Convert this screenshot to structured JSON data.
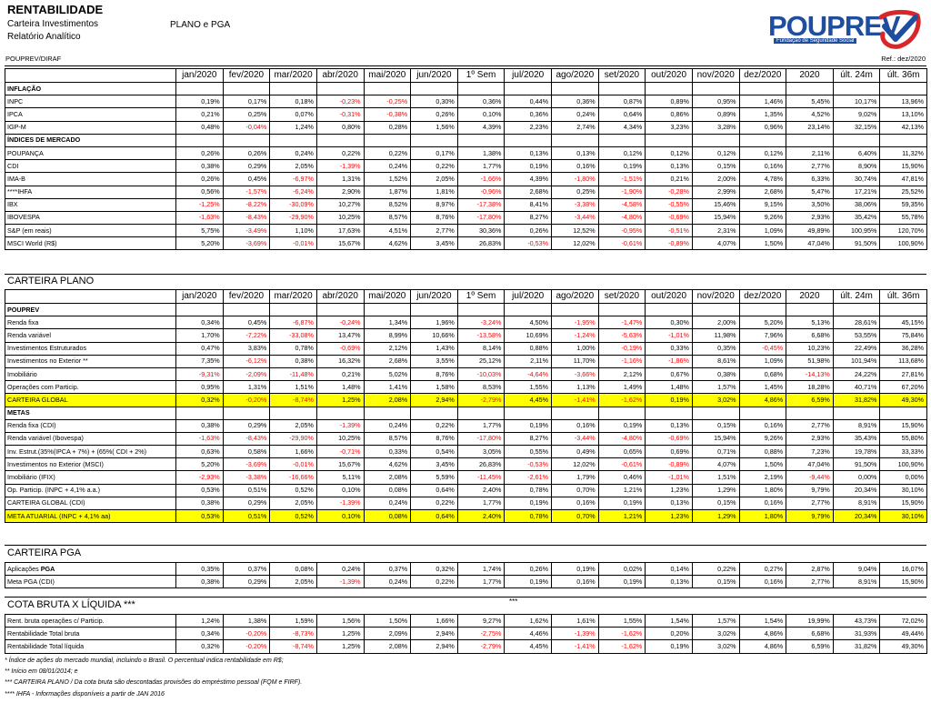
{
  "header": {
    "title": "RENTABILIDADE",
    "subtitle1": "Carteira Investimentos",
    "subtitle2": "Relatório Analítico",
    "plan": "PLANO e PGA",
    "logo_text": "POUPREV",
    "logo_sub": "Fundação de Seguridade Social",
    "org": "POUPREV/DIRAF",
    "ref": "Ref.: dez/2020"
  },
  "columns": [
    "jan/2020",
    "fev/2020",
    "mar/2020",
    "abr/2020",
    "mai/2020",
    "jun/2020",
    "1º Sem",
    "jul/2020",
    "ago/2020",
    "set/2020",
    "out/2020",
    "nov/2020",
    "dez/2020",
    "2020",
    "últ. 24m",
    "últ. 36m"
  ],
  "table1": [
    {
      "label": "INFLAÇÃO",
      "section": true
    },
    {
      "label": "INPC",
      "values": [
        "0,19%",
        "0,17%",
        "0,18%",
        "-0,23%",
        "-0,25%",
        "0,30%",
        "0,36%",
        "0,44%",
        "0,36%",
        "0,87%",
        "0,89%",
        "0,95%",
        "1,46%",
        "5,45%",
        "10,17%",
        "13,96%"
      ]
    },
    {
      "label": "IPCA",
      "values": [
        "0,21%",
        "0,25%",
        "0,07%",
        "-0,31%",
        "-0,38%",
        "0,26%",
        "0,10%",
        "0,36%",
        "0,24%",
        "0,64%",
        "0,86%",
        "0,89%",
        "1,35%",
        "4,52%",
        "9,02%",
        "13,10%"
      ]
    },
    {
      "label": "IGP-M",
      "values": [
        "0,48%",
        "-0,04%",
        "1,24%",
        "0,80%",
        "0,28%",
        "1,56%",
        "4,39%",
        "2,23%",
        "2,74%",
        "4,34%",
        "3,23%",
        "3,28%",
        "0,96%",
        "23,14%",
        "32,15%",
        "42,13%"
      ]
    },
    {
      "label": "ÍNDICES DE MERCADO",
      "section": true
    },
    {
      "label": "POUPANÇA",
      "values": [
        "0,26%",
        "0,26%",
        "0,24%",
        "0,22%",
        "0,22%",
        "0,17%",
        "1,38%",
        "0,13%",
        "0,13%",
        "0,12%",
        "0,12%",
        "0,12%",
        "0,12%",
        "2,11%",
        "6,40%",
        "11,32%"
      ]
    },
    {
      "label": "CDI",
      "values": [
        "0,38%",
        "0,29%",
        "2,05%",
        "-1,39%",
        "0,24%",
        "0,22%",
        "1,77%",
        "0,19%",
        "0,16%",
        "0,19%",
        "0,13%",
        "0,15%",
        "0,16%",
        "2,77%",
        "8,90%",
        "15,90%"
      ]
    },
    {
      "label": "IMA-B",
      "values": [
        "0,26%",
        "0,45%",
        "-6,97%",
        "1,31%",
        "1,52%",
        "2,05%",
        "-1,66%",
        "4,39%",
        "-1,80%",
        "-1,51%",
        "0,21%",
        "2,00%",
        "4,78%",
        "6,33%",
        "30,74%",
        "47,81%"
      ]
    },
    {
      "label": "****IHFA",
      "values": [
        "0,56%",
        "-1,57%",
        "-6,24%",
        "2,90%",
        "1,87%",
        "1,81%",
        "-0,96%",
        "2,68%",
        "0,25%",
        "-1,90%",
        "-0,28%",
        "2,99%",
        "2,68%",
        "5,47%",
        "17,21%",
        "25,52%"
      ]
    },
    {
      "label": "IBX",
      "values": [
        "-1,25%",
        "-8,22%",
        "-30,09%",
        "10,27%",
        "8,52%",
        "8,97%",
        "-17,38%",
        "8,41%",
        "-3,38%",
        "-4,58%",
        "-0,55%",
        "15,46%",
        "9,15%",
        "3,50%",
        "38,06%",
        "59,35%"
      ]
    },
    {
      "label": "IBOVESPA",
      "values": [
        "-1,63%",
        "-8,43%",
        "-29,90%",
        "10,25%",
        "8,57%",
        "8,76%",
        "-17,80%",
        "8,27%",
        "-3,44%",
        "-4,80%",
        "-0,69%",
        "15,94%",
        "9,26%",
        "2,93%",
        "35,42%",
        "55,78%"
      ]
    },
    {
      "label": "S&P (em reais)",
      "values": [
        "5,75%",
        "-3,49%",
        "1,10%",
        "17,63%",
        "4,51%",
        "2,77%",
        "30,36%",
        "0,26%",
        "12,52%",
        "-0,95%",
        "-0,51%",
        "2,31%",
        "1,09%",
        "49,89%",
        "100,95%",
        "120,70%"
      ]
    },
    {
      "label": "MSCI World (R$)",
      "values": [
        "5,20%",
        "-3,69%",
        "-0,01%",
        "15,67%",
        "4,62%",
        "3,45%",
        "26,83%",
        "-0,53%",
        "12,02%",
        "-0,61%",
        "-0,89%",
        "4,07%",
        "1,50%",
        "47,04%",
        "91,50%",
        "100,90%"
      ]
    }
  ],
  "section2_title": "CARTEIRA PLANO",
  "table2": [
    {
      "label": "POUPREV",
      "section": true
    },
    {
      "label": "Renda fixa",
      "values": [
        "0,34%",
        "0,45%",
        "-6,87%",
        "-0,24%",
        "1,34%",
        "1,96%",
        "-3,24%",
        "4,50%",
        "-1,95%",
        "-1,47%",
        "0,30%",
        "2,00%",
        "5,20%",
        "5,13%",
        "28,61%",
        "45,15%"
      ]
    },
    {
      "label": "Renda variável",
      "values": [
        "1,70%",
        "-7,22%",
        "-33,08%",
        "13,47%",
        "8,99%",
        "10,66%",
        "-13,58%",
        "10,69%",
        "-1,24%",
        "-5,63%",
        "-1,01%",
        "11,98%",
        "7,96%",
        "6,68%",
        "53,55%",
        "75,84%"
      ]
    },
    {
      "label": "Investimentos Estruturados",
      "values": [
        "0,47%",
        "3,83%",
        "0,78%",
        "-0,69%",
        "2,12%",
        "1,43%",
        "8,14%",
        "0,88%",
        "1,00%",
        "-0,19%",
        "0,33%",
        "0,35%",
        "-0,45%",
        "10,23%",
        "22,49%",
        "36,28%"
      ]
    },
    {
      "label": "Investimentos no Exterior **",
      "values": [
        "7,35%",
        "-6,12%",
        "0,38%",
        "16,32%",
        "2,68%",
        "3,55%",
        "25,12%",
        "2,11%",
        "11,70%",
        "-1,16%",
        "-1,86%",
        "8,61%",
        "1,09%",
        "51,98%",
        "101,94%",
        "113,68%"
      ]
    },
    {
      "label": "Imobiliário",
      "values": [
        "-9,31%",
        "-2,09%",
        "-11,48%",
        "0,21%",
        "5,02%",
        "8,76%",
        "-10,03%",
        "-4,64%",
        "-3,66%",
        "2,12%",
        "0,67%",
        "0,38%",
        "0,68%",
        "-14,13%",
        "24,22%",
        "27,81%"
      ]
    },
    {
      "label": "Operações com Particip.",
      "values": [
        "0,95%",
        "1,31%",
        "1,51%",
        "1,48%",
        "1,41%",
        "1,58%",
        "8,53%",
        "1,55%",
        "1,13%",
        "1,49%",
        "1,48%",
        "1,57%",
        "1,45%",
        "18,28%",
        "40,71%",
        "67,20%"
      ]
    },
    {
      "label": "CARTEIRA GLOBAL",
      "highlight": true,
      "values": [
        "0,32%",
        "-0,20%",
        "-8,74%",
        "1,25%",
        "2,08%",
        "2,94%",
        "-2,79%",
        "4,45%",
        "-1,41%",
        "-1,62%",
        "0,19%",
        "3,02%",
        "4,86%",
        "6,59%",
        "31,82%",
        "49,30%"
      ]
    },
    {
      "label": "METAS",
      "section": true
    },
    {
      "label": "Renda fixa (CDI)",
      "values": [
        "0,38%",
        "0,29%",
        "2,05%",
        "-1,39%",
        "0,24%",
        "0,22%",
        "1,77%",
        "0,19%",
        "0,16%",
        "0,19%",
        "0,13%",
        "0,15%",
        "0,16%",
        "2,77%",
        "8,91%",
        "15,90%"
      ]
    },
    {
      "label": "Renda variável (Ibovespa)",
      "values": [
        "-1,63%",
        "-8,43%",
        "-29,90%",
        "10,25%",
        "8,57%",
        "8,76%",
        "-17,80%",
        "8,27%",
        "-3,44%",
        "-4,80%",
        "-0,69%",
        "15,94%",
        "9,26%",
        "2,93%",
        "35,43%",
        "55,80%"
      ]
    },
    {
      "label": "Inv. Estrut.(35%(IPCA + 7%) + (65%( CDI + 2%)",
      "values": [
        "0,63%",
        "0,58%",
        "1,66%",
        "-0,71%",
        "0,33%",
        "0,54%",
        "3,05%",
        "0,55%",
        "0,49%",
        "0,65%",
        "0,69%",
        "0,71%",
        "0,88%",
        "7,23%",
        "19,78%",
        "33,33%"
      ]
    },
    {
      "label": "Investimentos no Exterior (MSCI)",
      "values": [
        "5,20%",
        "-3,69%",
        "-0,01%",
        "15,67%",
        "4,62%",
        "3,45%",
        "26,83%",
        "-0,53%",
        "12,02%",
        "-0,61%",
        "-0,89%",
        "4,07%",
        "1,50%",
        "47,04%",
        "91,50%",
        "100,90%"
      ]
    },
    {
      "label": "Imobiliário (IFIX)",
      "values": [
        "-2,93%",
        "-3,38%",
        "-16,66%",
        "5,11%",
        "2,08%",
        "5,59%",
        "-11,45%",
        "-2,61%",
        "1,79%",
        "0,46%",
        "-1,01%",
        "1,51%",
        "2,19%",
        "-9,44%",
        "0,00%",
        "0,00%"
      ]
    },
    {
      "label": "Op. Particip. (INPC + 4,1% a.a.)",
      "values": [
        "0,53%",
        "0,51%",
        "0,52%",
        "0,10%",
        "0,08%",
        "0,64%",
        "2,40%",
        "0,78%",
        "0,70%",
        "1,21%",
        "1,23%",
        "1,29%",
        "1,80%",
        "9,79%",
        "20,34%",
        "30,10%"
      ]
    },
    {
      "label": "CARTEIRA GLOBAL (CDI)",
      "values": [
        "0,38%",
        "0,29%",
        "2,05%",
        "-1,39%",
        "0,24%",
        "0,22%",
        "1,77%",
        "0,19%",
        "0,16%",
        "0,19%",
        "0,13%",
        "0,15%",
        "0,16%",
        "2,77%",
        "8,91%",
        "15,90%"
      ]
    },
    {
      "label": "META ATUARIAL (INPC + 4,1% aa)",
      "highlight": true,
      "values": [
        "0,53%",
        "0,51%",
        "0,52%",
        "0,10%",
        "0,08%",
        "0,64%",
        "2,40%",
        "0,78%",
        "0,70%",
        "1,21%",
        "1,23%",
        "1,29%",
        "1,80%",
        "9,79%",
        "20,34%",
        "30,10%"
      ]
    }
  ],
  "section3_title": "CARTEIRA PGA",
  "table3": [
    {
      "label_plain": "Aplicações ",
      "label_bold": "PGA",
      "values": [
        "0,35%",
        "0,37%",
        "0,08%",
        "0,24%",
        "0,37%",
        "0,32%",
        "1,74%",
        "0,26%",
        "0,19%",
        "0,02%",
        "0,14%",
        "0,22%",
        "0,27%",
        "2,87%",
        "9,04%",
        "16,07%"
      ]
    },
    {
      "label": "Meta PGA (CDI)",
      "values": [
        "0,38%",
        "0,29%",
        "2,05%",
        "-1,39%",
        "0,24%",
        "0,22%",
        "1,77%",
        "0,19%",
        "0,16%",
        "0,19%",
        "0,13%",
        "0,15%",
        "0,16%",
        "2,77%",
        "8,91%",
        "15,90%"
      ]
    }
  ],
  "section4_title": "COTA BRUTA X LÍQUIDA ***",
  "section4_stars": "***",
  "table4": [
    {
      "label": "Rent. bruta operações c/ Particip.",
      "values": [
        "1,24%",
        "1,38%",
        "1,59%",
        "1,56%",
        "1,50%",
        "1,66%",
        "9,27%",
        "1,62%",
        "1,61%",
        "1,55%",
        "1,54%",
        "1,57%",
        "1,54%",
        "19,99%",
        "43,73%",
        "72,02%"
      ]
    },
    {
      "label": "Rentabilidade Total bruta",
      "values": [
        "0,34%",
        "-0,20%",
        "-8,73%",
        "1,25%",
        "2,09%",
        "2,94%",
        "-2,75%",
        "4,46%",
        "-1,39%",
        "-1,62%",
        "0,20%",
        "3,02%",
        "4,86%",
        "6,68%",
        "31,93%",
        "49,44%"
      ]
    },
    {
      "label": "Rentabilidade Total líquida",
      "values": [
        "0,32%",
        "-0,20%",
        "-8,74%",
        "1,25%",
        "2,08%",
        "2,94%",
        "-2,79%",
        "4,45%",
        "-1,41%",
        "-1,62%",
        "0,19%",
        "3,02%",
        "4,86%",
        "6,59%",
        "31,82%",
        "49,30%"
      ]
    }
  ],
  "notes": [
    "* Índice de ações do mercado mundial, incluindo o Brasil. O percentual indica rentabilidade em R$;",
    "** Início em 08/01/2014; e",
    "*** CARTEIRA PLANO / Da cota bruta são descontadas provisões do empréstimo pessoal (FQM e FIRF).",
    "**** IHFA - Informações disponíveis a partir de JAN 2016"
  ],
  "colors": {
    "negative": "#ff0000",
    "highlight": "#ffff00",
    "brand": "#1f4e9e",
    "brand_accent": "#d9262b"
  }
}
